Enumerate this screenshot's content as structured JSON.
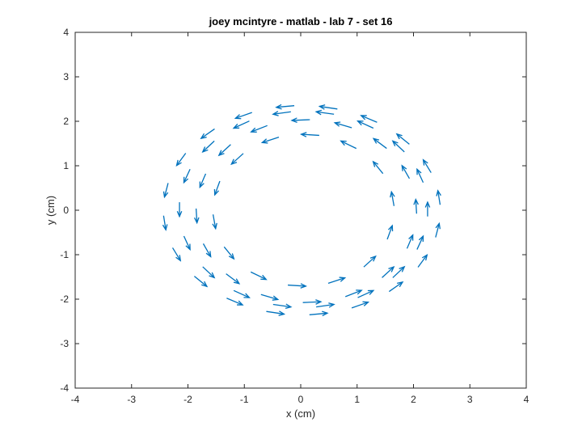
{
  "chart_data": {
    "type": "quiver",
    "title": "joey mcintyre - matlab - lab 7 - set 16",
    "xlabel": "x (cm)",
    "ylabel": "y (cm)",
    "xlim": [
      -4,
      4
    ],
    "ylim": [
      -4,
      4
    ],
    "xticks": [
      -4,
      -3,
      -2,
      -1,
      0,
      1,
      2,
      3,
      4
    ],
    "yticks": [
      -4,
      -3,
      -2,
      -1,
      0,
      1,
      2,
      3,
      4
    ],
    "grid": false,
    "arrow_color": "#0072BD",
    "series": [
      {
        "rings": [
          {
            "rx": 1.6,
            "ry": 1.7,
            "cx": 0.05,
            "cy": 0.0,
            "count": 14,
            "phase": 0.15
          },
          {
            "rx": 1.95,
            "ry": 2.05,
            "cx": 0.1,
            "cy": -0.02,
            "count": 16,
            "phase": 0.05
          },
          {
            "rx": 2.2,
            "ry": 2.2,
            "cx": 0.05,
            "cy": 0.02,
            "count": 18,
            "phase": 0.0
          },
          {
            "rx": 2.45,
            "ry": 2.35,
            "cx": 0.02,
            "cy": 0.0,
            "count": 20,
            "phase": 0.12
          }
        ],
        "arrow_length": 0.32
      }
    ]
  }
}
